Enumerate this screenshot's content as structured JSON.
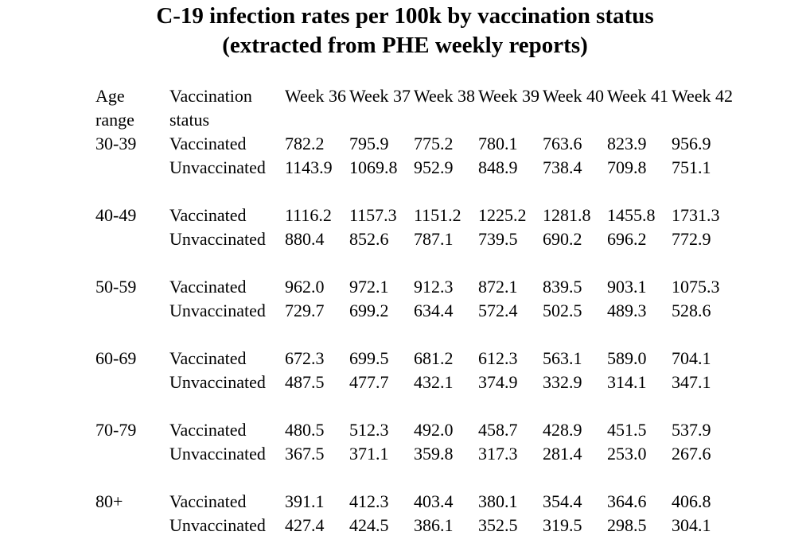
{
  "title": {
    "line1": "C-19 infection rates per 100k by vaccination status",
    "line2": "(extracted from PHE weekly reports)"
  },
  "chart_data": {
    "type": "table",
    "title": "C-19 infection rates per 100k by vaccination status (extracted from PHE weekly reports)",
    "columns": [
      "Age range",
      "Vaccination status",
      "Week 36",
      "Week 37",
      "Week 38",
      "Week 39",
      "Week 40",
      "Week 41",
      "Week 42"
    ],
    "groups": [
      {
        "age_range": "30-39",
        "rows": [
          {
            "status": "Vaccinated",
            "values": [
              782.2,
              795.9,
              775.2,
              780.1,
              763.6,
              823.9,
              956.9
            ]
          },
          {
            "status": "Unvaccinated",
            "values": [
              1143.9,
              1069.8,
              952.9,
              848.9,
              738.4,
              709.8,
              751.1
            ]
          }
        ]
      },
      {
        "age_range": "40-49",
        "rows": [
          {
            "status": "Vaccinated",
            "values": [
              1116.2,
              1157.3,
              1151.2,
              1225.2,
              1281.8,
              1455.8,
              1731.3
            ]
          },
          {
            "status": "Unvaccinated",
            "values": [
              880.4,
              852.6,
              787.1,
              739.5,
              690.2,
              696.2,
              772.9
            ]
          }
        ]
      },
      {
        "age_range": "50-59",
        "rows": [
          {
            "status": "Vaccinated",
            "values": [
              962.0,
              972.1,
              912.3,
              872.1,
              839.5,
              903.1,
              1075.3
            ]
          },
          {
            "status": "Unvaccinated",
            "values": [
              729.7,
              699.2,
              634.4,
              572.4,
              502.5,
              489.3,
              528.6
            ]
          }
        ]
      },
      {
        "age_range": "60-69",
        "rows": [
          {
            "status": "Vaccinated",
            "values": [
              672.3,
              699.5,
              681.2,
              612.3,
              563.1,
              589.0,
              704.1
            ]
          },
          {
            "status": "Unvaccinated",
            "values": [
              487.5,
              477.7,
              432.1,
              374.9,
              332.9,
              314.1,
              347.1
            ]
          }
        ]
      },
      {
        "age_range": "70-79",
        "rows": [
          {
            "status": "Vaccinated",
            "values": [
              480.5,
              512.3,
              492.0,
              458.7,
              428.9,
              451.5,
              537.9
            ]
          },
          {
            "status": "Unvaccinated",
            "values": [
              367.5,
              371.1,
              359.8,
              317.3,
              281.4,
              253.0,
              267.6
            ]
          }
        ]
      },
      {
        "age_range": "80+",
        "rows": [
          {
            "status": "Vaccinated",
            "values": [
              391.1,
              412.3,
              403.4,
              380.1,
              354.4,
              364.6,
              406.8
            ]
          },
          {
            "status": "Unvaccinated",
            "values": [
              427.4,
              424.5,
              386.1,
              352.5,
              319.5,
              298.5,
              304.1
            ]
          }
        ]
      }
    ],
    "layout": {
      "value_format": "one_decimal",
      "week_columns_align": "right",
      "text_color": "#000000",
      "background_color": "#ffffff"
    }
  }
}
